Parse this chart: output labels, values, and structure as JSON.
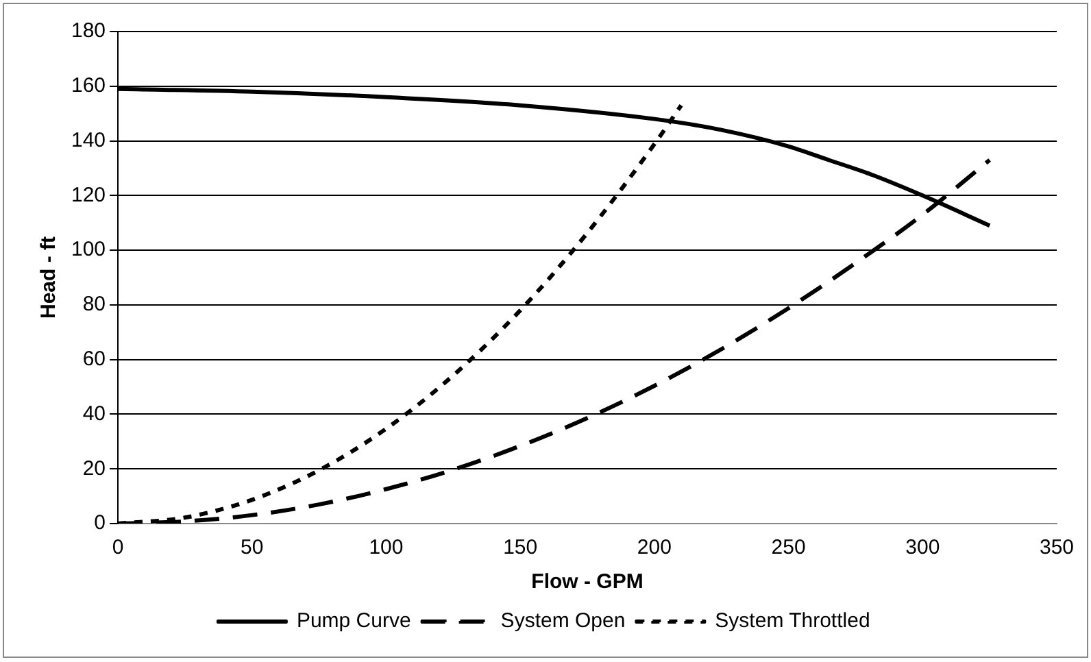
{
  "chart_data": {
    "type": "line",
    "xlabel": "Flow - GPM",
    "ylabel": "Head - ft",
    "xlim": [
      0,
      350
    ],
    "xticks": [
      0,
      50,
      100,
      150,
      200,
      250,
      300,
      350
    ],
    "ylim": [
      0,
      180
    ],
    "yticks": [
      0,
      20,
      40,
      60,
      80,
      100,
      120,
      140,
      160,
      180
    ],
    "grid": "y",
    "legend": "bottom",
    "marker": "none",
    "series": [
      {
        "name": "Pump Curve",
        "color": "#000000",
        "line_style": "solid",
        "x": [
          0,
          50,
          100,
          150,
          200,
          225,
          250,
          265,
          280,
          300,
          325
        ],
        "values": [
          159,
          158,
          156,
          153,
          148,
          144,
          138,
          133,
          128,
          120,
          109
        ]
      },
      {
        "name": "System Open",
        "color": "#000000",
        "line_style": "dashed",
        "x": [
          0,
          25,
          50,
          75,
          100,
          125,
          150,
          175,
          200,
          225,
          250,
          275,
          300,
          325
        ],
        "values": [
          0,
          0.8,
          3.1,
          7,
          12.6,
          19.7,
          28.4,
          38.6,
          50.4,
          63.8,
          78.8,
          95.3,
          113,
          133
        ]
      },
      {
        "name": "System Throttled",
        "color": "#000000",
        "line_style": "dotted",
        "x": [
          0,
          25,
          50,
          75,
          100,
          125,
          150,
          175,
          200,
          210
        ],
        "values": [
          0,
          2.2,
          8.7,
          19.5,
          34.7,
          54.2,
          78,
          106.3,
          138.8,
          153
        ]
      }
    ]
  }
}
